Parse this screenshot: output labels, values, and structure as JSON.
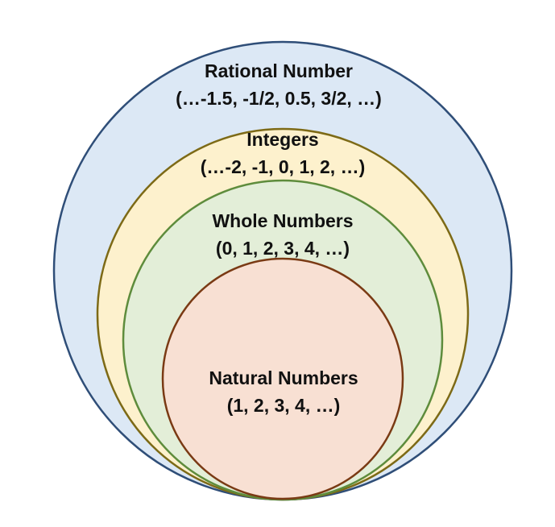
{
  "sets": [
    {
      "id": "rational",
      "name": "Rational Number",
      "examples": "(…-1.5, -1/2, 0.5, 3/2, …)",
      "fill": "#dce8f5",
      "stroke": "#2f4e78"
    },
    {
      "id": "integers",
      "name": "Integers",
      "examples": "(…-2, -1, 0, 1, 2, …)",
      "fill": "#fdf1cd",
      "stroke": "#7d6a16"
    },
    {
      "id": "whole",
      "name": "Whole Numbers",
      "examples": "(0, 1, 2, 3, 4, …)",
      "fill": "#e3eed8",
      "stroke": "#5e8c3c"
    },
    {
      "id": "natural",
      "name": "Natural Numbers",
      "examples": "(1, 2, 3, 4, …)",
      "fill": "#f8e0d3",
      "stroke": "#7a3a14"
    }
  ]
}
